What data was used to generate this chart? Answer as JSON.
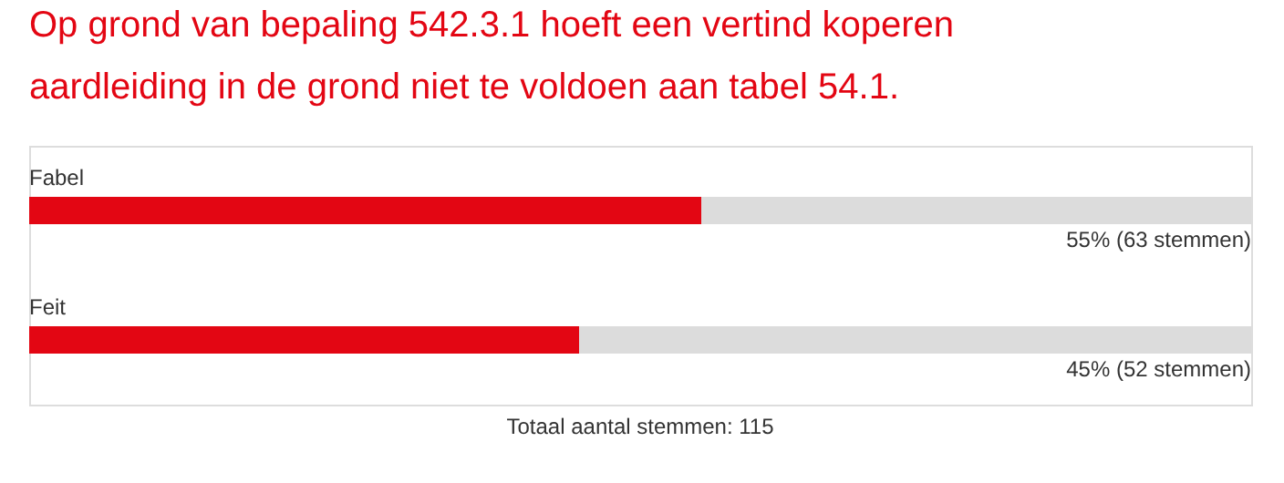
{
  "chart_data": {
    "type": "bar",
    "orientation": "horizontal",
    "title": "Op grond van bepaling 542.3.1 hoeft een vertind koperen aardleiding in de grond niet te voldoen aan tabel 54.1.",
    "categories": [
      "Fabel",
      "Feit"
    ],
    "series": [
      {
        "color": "#e30613",
        "values": [
          55,
          45
        ],
        "value_labels": [
          "55% (63 stemmen)",
          "45% (52 stemmen)"
        ]
      }
    ],
    "xlim": [
      0,
      100
    ],
    "annotations": [
      "Totaal aantal stemmen: 115"
    ]
  }
}
